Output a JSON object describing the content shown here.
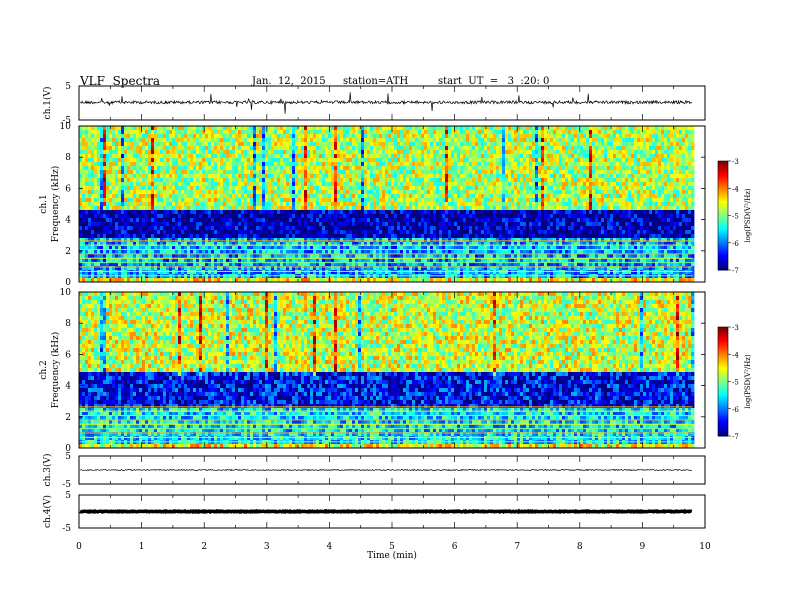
{
  "header": {
    "title": "VLF  Spectra",
    "date": "Jan.  12,  2015",
    "station": "station=ATH",
    "start": "start  UT  =   3  :20: 0"
  },
  "chart_data": [
    {
      "type": "line",
      "panel": "ch1-waveform",
      "ylabel": "ch.1(V)",
      "ylim": [
        -5,
        5
      ],
      "yticks": [
        "5",
        "-5"
      ],
      "description_level": 0.2
    },
    {
      "type": "heatmap",
      "panel": "ch1-spectrogram",
      "ylabel": [
        "ch.1",
        "Frequency  (kHz)"
      ],
      "ylim": [
        0,
        10
      ],
      "yticks": [
        "0",
        "2",
        "4",
        "6",
        "8",
        "10"
      ],
      "colorbar": {
        "label": "log(PSD(V²/Hz)",
        "range": [
          -7,
          -3
        ],
        "ticks": [
          "-3",
          "-4",
          "-5",
          "-6",
          "-7"
        ]
      },
      "bands": [
        {
          "from": 0,
          "to": 0.3,
          "level": -4.5
        },
        {
          "from": 0.3,
          "to": 2.8,
          "level": -5.8
        },
        {
          "from": 2.8,
          "to": 4.6,
          "level": -6.8
        },
        {
          "from": 4.6,
          "to": 10,
          "level": -4.8
        }
      ]
    },
    {
      "type": "heatmap",
      "panel": "ch2-spectrogram",
      "ylabel": [
        "ch.2",
        "Frequency  (kHz)"
      ],
      "ylim": [
        0,
        10
      ],
      "yticks": [
        "0",
        "2",
        "4",
        "6",
        "8",
        "10"
      ],
      "colorbar": {
        "label": "log(PSD(V²/Hz)",
        "range": [
          -7,
          -3
        ],
        "ticks": [
          "-3",
          "-4",
          "-5",
          "-6",
          "-7"
        ]
      },
      "bands": [
        {
          "from": 0,
          "to": 0.3,
          "level": -4.5
        },
        {
          "from": 0.3,
          "to": 2.6,
          "level": -5.6
        },
        {
          "from": 2.6,
          "to": 4.8,
          "level": -6.5
        },
        {
          "from": 4.8,
          "to": 10,
          "level": -4.7
        }
      ]
    },
    {
      "type": "line",
      "panel": "ch3-waveform",
      "ylabel": "ch.3(V)",
      "ylim": [
        -5,
        5
      ],
      "yticks": [
        "5",
        "-5"
      ],
      "description_level": 0.0
    },
    {
      "type": "line",
      "panel": "ch4-waveform",
      "ylabel": "ch.4(V)",
      "ylim": [
        -5,
        5
      ],
      "yticks": [
        "5",
        "-5"
      ],
      "description_level": 0.0
    }
  ],
  "xaxis": {
    "label": "Time  (min)",
    "xlim": [
      0,
      10
    ],
    "ticks": [
      "0",
      "1",
      "2",
      "3",
      "4",
      "5",
      "6",
      "7",
      "8",
      "9",
      "10"
    ],
    "data_end": 9.8
  }
}
